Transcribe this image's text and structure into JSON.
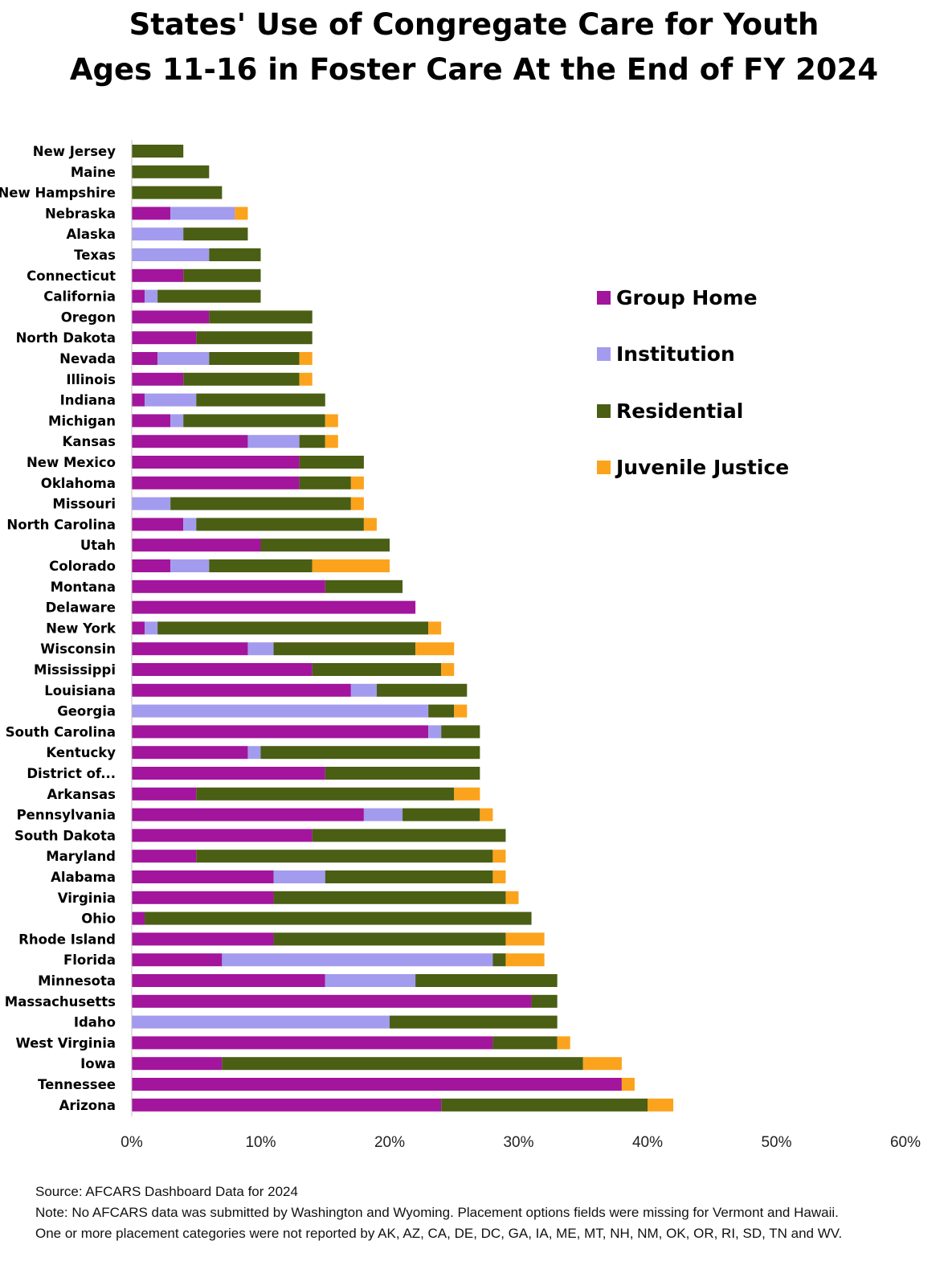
{
  "title_line1": "States' Use of Congregate Care for Youth",
  "title_line2": "Ages 11-16 in Foster Care At the End of FY 2024",
  "source": "Source:  AFCARS Dashboard Data for 2024",
  "note_line1": "Note:  No AFCARS data was submitted by Washington and Wyoming. Placement options fields were missing for Vermont and Hawaii.",
  "note_line2": "One or more placement categories were not reported by AK, AZ, CA, DE, DC, GA, IA, ME, MT, NH, NM, OK, OR, RI, SD, TN and WV.",
  "chart_data": {
    "type": "bar",
    "orientation": "horizontal",
    "stacked": true,
    "xlim": [
      0,
      60
    ],
    "x_ticks": [
      "0%",
      "10%",
      "20%",
      "30%",
      "40%",
      "50%",
      "60%"
    ],
    "legend_position": "right",
    "categories": [
      "New Jersey",
      "Maine",
      "New Hampshire",
      "Nebraska",
      "Alaska",
      "Texas",
      "Connecticut",
      "California",
      "Oregon",
      "North Dakota",
      "Nevada",
      "Illinois",
      "Indiana",
      "Michigan",
      "Kansas",
      "New Mexico",
      "Oklahoma",
      "Missouri",
      "North Carolina",
      "Utah",
      "Colorado",
      "Montana",
      "Delaware",
      "New York",
      "Wisconsin",
      "Mississippi",
      "Louisiana",
      "Georgia",
      "South Carolina",
      "Kentucky",
      "District of...",
      "Arkansas",
      "Pennsylvania",
      "South Dakota",
      "Maryland",
      "Alabama",
      "Virginia",
      "Ohio",
      "Rhode Island",
      "Florida",
      "Minnesota",
      "Massachusetts",
      "Idaho",
      "West Virginia",
      "Iowa",
      "Tennessee",
      "Arizona"
    ],
    "series": [
      {
        "name": "Group Home",
        "color": "#a2159c",
        "values": [
          0,
          0,
          0,
          3,
          0,
          0,
          4,
          1,
          6,
          5,
          2,
          4,
          1,
          3,
          9,
          13,
          13,
          0,
          4,
          10,
          3,
          15,
          22,
          1,
          9,
          14,
          17,
          0,
          23,
          9,
          15,
          5,
          18,
          14,
          5,
          11,
          11,
          1,
          11,
          7,
          15,
          31,
          0,
          28,
          7,
          38,
          24
        ]
      },
      {
        "name": "Institution",
        "color": "#a39bee",
        "values": [
          0,
          0,
          0,
          5,
          4,
          6,
          0,
          1,
          0,
          0,
          4,
          0,
          4,
          1,
          4,
          0,
          0,
          3,
          1,
          0,
          3,
          0,
          0,
          1,
          2,
          0,
          2,
          23,
          1,
          1,
          0,
          0,
          3,
          0,
          0,
          4,
          0,
          0,
          0,
          21,
          7,
          0,
          20,
          0,
          0,
          0,
          0
        ]
      },
      {
        "name": "Residential",
        "color": "#4a5e14",
        "values": [
          4,
          6,
          7,
          0,
          5,
          4,
          6,
          8,
          8,
          9,
          7,
          9,
          10,
          11,
          2,
          5,
          4,
          14,
          13,
          10,
          8,
          6,
          0,
          21,
          11,
          10,
          7,
          2,
          3,
          17,
          12,
          20,
          6,
          15,
          23,
          13,
          18,
          30,
          18,
          1,
          11,
          2,
          13,
          5,
          28,
          0,
          16
        ]
      },
      {
        "name": "Juvenile Justice",
        "color": "#fba31c",
        "values": [
          0,
          0,
          0,
          1,
          0,
          0,
          0,
          0,
          0,
          0,
          1,
          1,
          0,
          1,
          1,
          0,
          1,
          1,
          1,
          0,
          6,
          0,
          0,
          1,
          3,
          1,
          0,
          1,
          0,
          0,
          0,
          2,
          1,
          0,
          1,
          1,
          1,
          0,
          3,
          3,
          0,
          0,
          0,
          1,
          3,
          1,
          2
        ]
      }
    ]
  }
}
